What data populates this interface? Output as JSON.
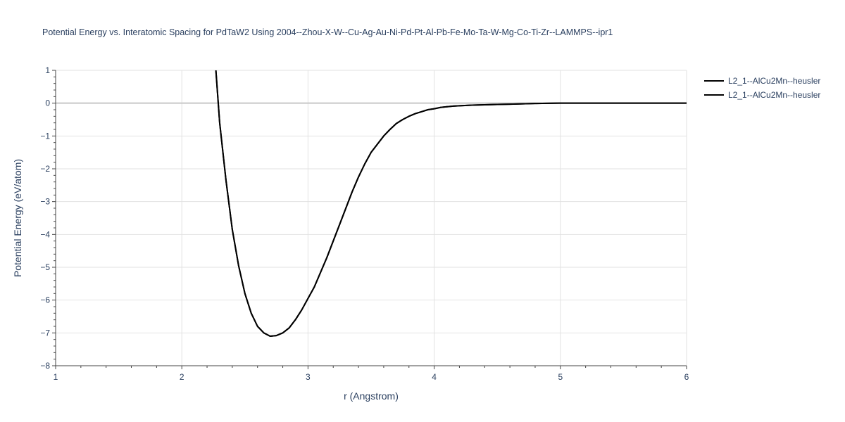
{
  "chart_data": {
    "type": "line",
    "title": "Potential Energy vs. Interatomic Spacing for PdTaW2 Using 2004--Zhou-X-W--Cu-Ag-Au-Ni-Pd-Pt-Al-Pb-Fe-Mo-Ta-W-Mg-Co-Ti-Zr--LAMMPS--ipr1",
    "xlabel": "r (Angstrom)",
    "ylabel": "Potential Energy (eV/atom)",
    "xlim": [
      1,
      6
    ],
    "ylim": [
      -8,
      1
    ],
    "xticks": [
      1,
      2,
      3,
      4,
      5,
      6
    ],
    "xtick_labels": [
      "1",
      "2",
      "3",
      "4",
      "5",
      "6"
    ],
    "yticks": [
      1,
      0,
      -1,
      -2,
      -3,
      -4,
      -5,
      -6,
      -7,
      -8
    ],
    "ytick_labels": [
      "1",
      "0",
      "−1",
      "−2",
      "−3",
      "−4",
      "−5",
      "−6",
      "−7",
      "−8"
    ],
    "grid": true,
    "legend_position": "top-right",
    "series": [
      {
        "name": "L2_1--AlCu2Mn--heusler",
        "color": "#000000",
        "x": [
          2.27,
          2.3,
          2.35,
          2.4,
          2.45,
          2.5,
          2.55,
          2.6,
          2.65,
          2.7,
          2.75,
          2.8,
          2.85,
          2.9,
          2.95,
          3.0,
          3.05,
          3.1,
          3.15,
          3.2,
          3.25,
          3.3,
          3.35,
          3.4,
          3.45,
          3.5,
          3.55,
          3.6,
          3.65,
          3.7,
          3.75,
          3.8,
          3.85,
          3.9,
          3.95,
          4.0,
          4.05,
          4.1,
          4.15,
          4.2,
          4.3,
          4.4,
          4.5,
          4.6,
          4.7,
          4.8,
          4.9,
          5.0,
          5.2,
          5.4,
          5.6,
          5.8,
          6.0
        ],
        "y": [
          1.0,
          -0.6,
          -2.35,
          -3.85,
          -4.95,
          -5.8,
          -6.4,
          -6.8,
          -7.0,
          -7.1,
          -7.08,
          -7.0,
          -6.85,
          -6.6,
          -6.3,
          -5.95,
          -5.6,
          -5.15,
          -4.7,
          -4.2,
          -3.7,
          -3.2,
          -2.7,
          -2.25,
          -1.85,
          -1.5,
          -1.25,
          -1.0,
          -0.8,
          -0.62,
          -0.5,
          -0.4,
          -0.32,
          -0.26,
          -0.2,
          -0.17,
          -0.13,
          -0.11,
          -0.09,
          -0.08,
          -0.06,
          -0.05,
          -0.04,
          -0.03,
          -0.02,
          -0.01,
          -0.005,
          0.0,
          0.0,
          0.0,
          0.0,
          0.0,
          0.0
        ]
      },
      {
        "name": "L2_1--AlCu2Mn--heusler",
        "color": "#000000",
        "x": [
          2.27,
          2.3,
          2.35,
          2.4,
          2.45,
          2.5,
          2.55,
          2.6,
          2.65,
          2.7,
          2.75,
          2.8,
          2.85,
          2.9,
          2.95,
          3.0,
          3.05,
          3.1,
          3.15,
          3.2,
          3.25,
          3.3,
          3.35,
          3.4,
          3.45,
          3.5,
          3.55,
          3.6,
          3.65,
          3.7,
          3.75,
          3.8,
          3.85,
          3.9,
          3.95,
          4.0,
          4.05,
          4.1,
          4.15,
          4.2,
          4.3,
          4.4,
          4.5,
          4.6,
          4.7,
          4.8,
          4.9,
          5.0,
          5.2,
          5.4,
          5.6,
          5.8,
          6.0
        ],
        "y": [
          1.0,
          -0.6,
          -2.35,
          -3.85,
          -4.95,
          -5.8,
          -6.4,
          -6.8,
          -7.0,
          -7.1,
          -7.08,
          -7.0,
          -6.85,
          -6.6,
          -6.3,
          -5.95,
          -5.6,
          -5.15,
          -4.7,
          -4.2,
          -3.7,
          -3.2,
          -2.7,
          -2.25,
          -1.85,
          -1.5,
          -1.25,
          -1.0,
          -0.8,
          -0.62,
          -0.5,
          -0.4,
          -0.32,
          -0.26,
          -0.2,
          -0.17,
          -0.13,
          -0.11,
          -0.09,
          -0.08,
          -0.06,
          -0.05,
          -0.04,
          -0.03,
          -0.02,
          -0.01,
          -0.005,
          0.0,
          0.0,
          0.0,
          0.0,
          0.0,
          0.0
        ]
      }
    ]
  }
}
